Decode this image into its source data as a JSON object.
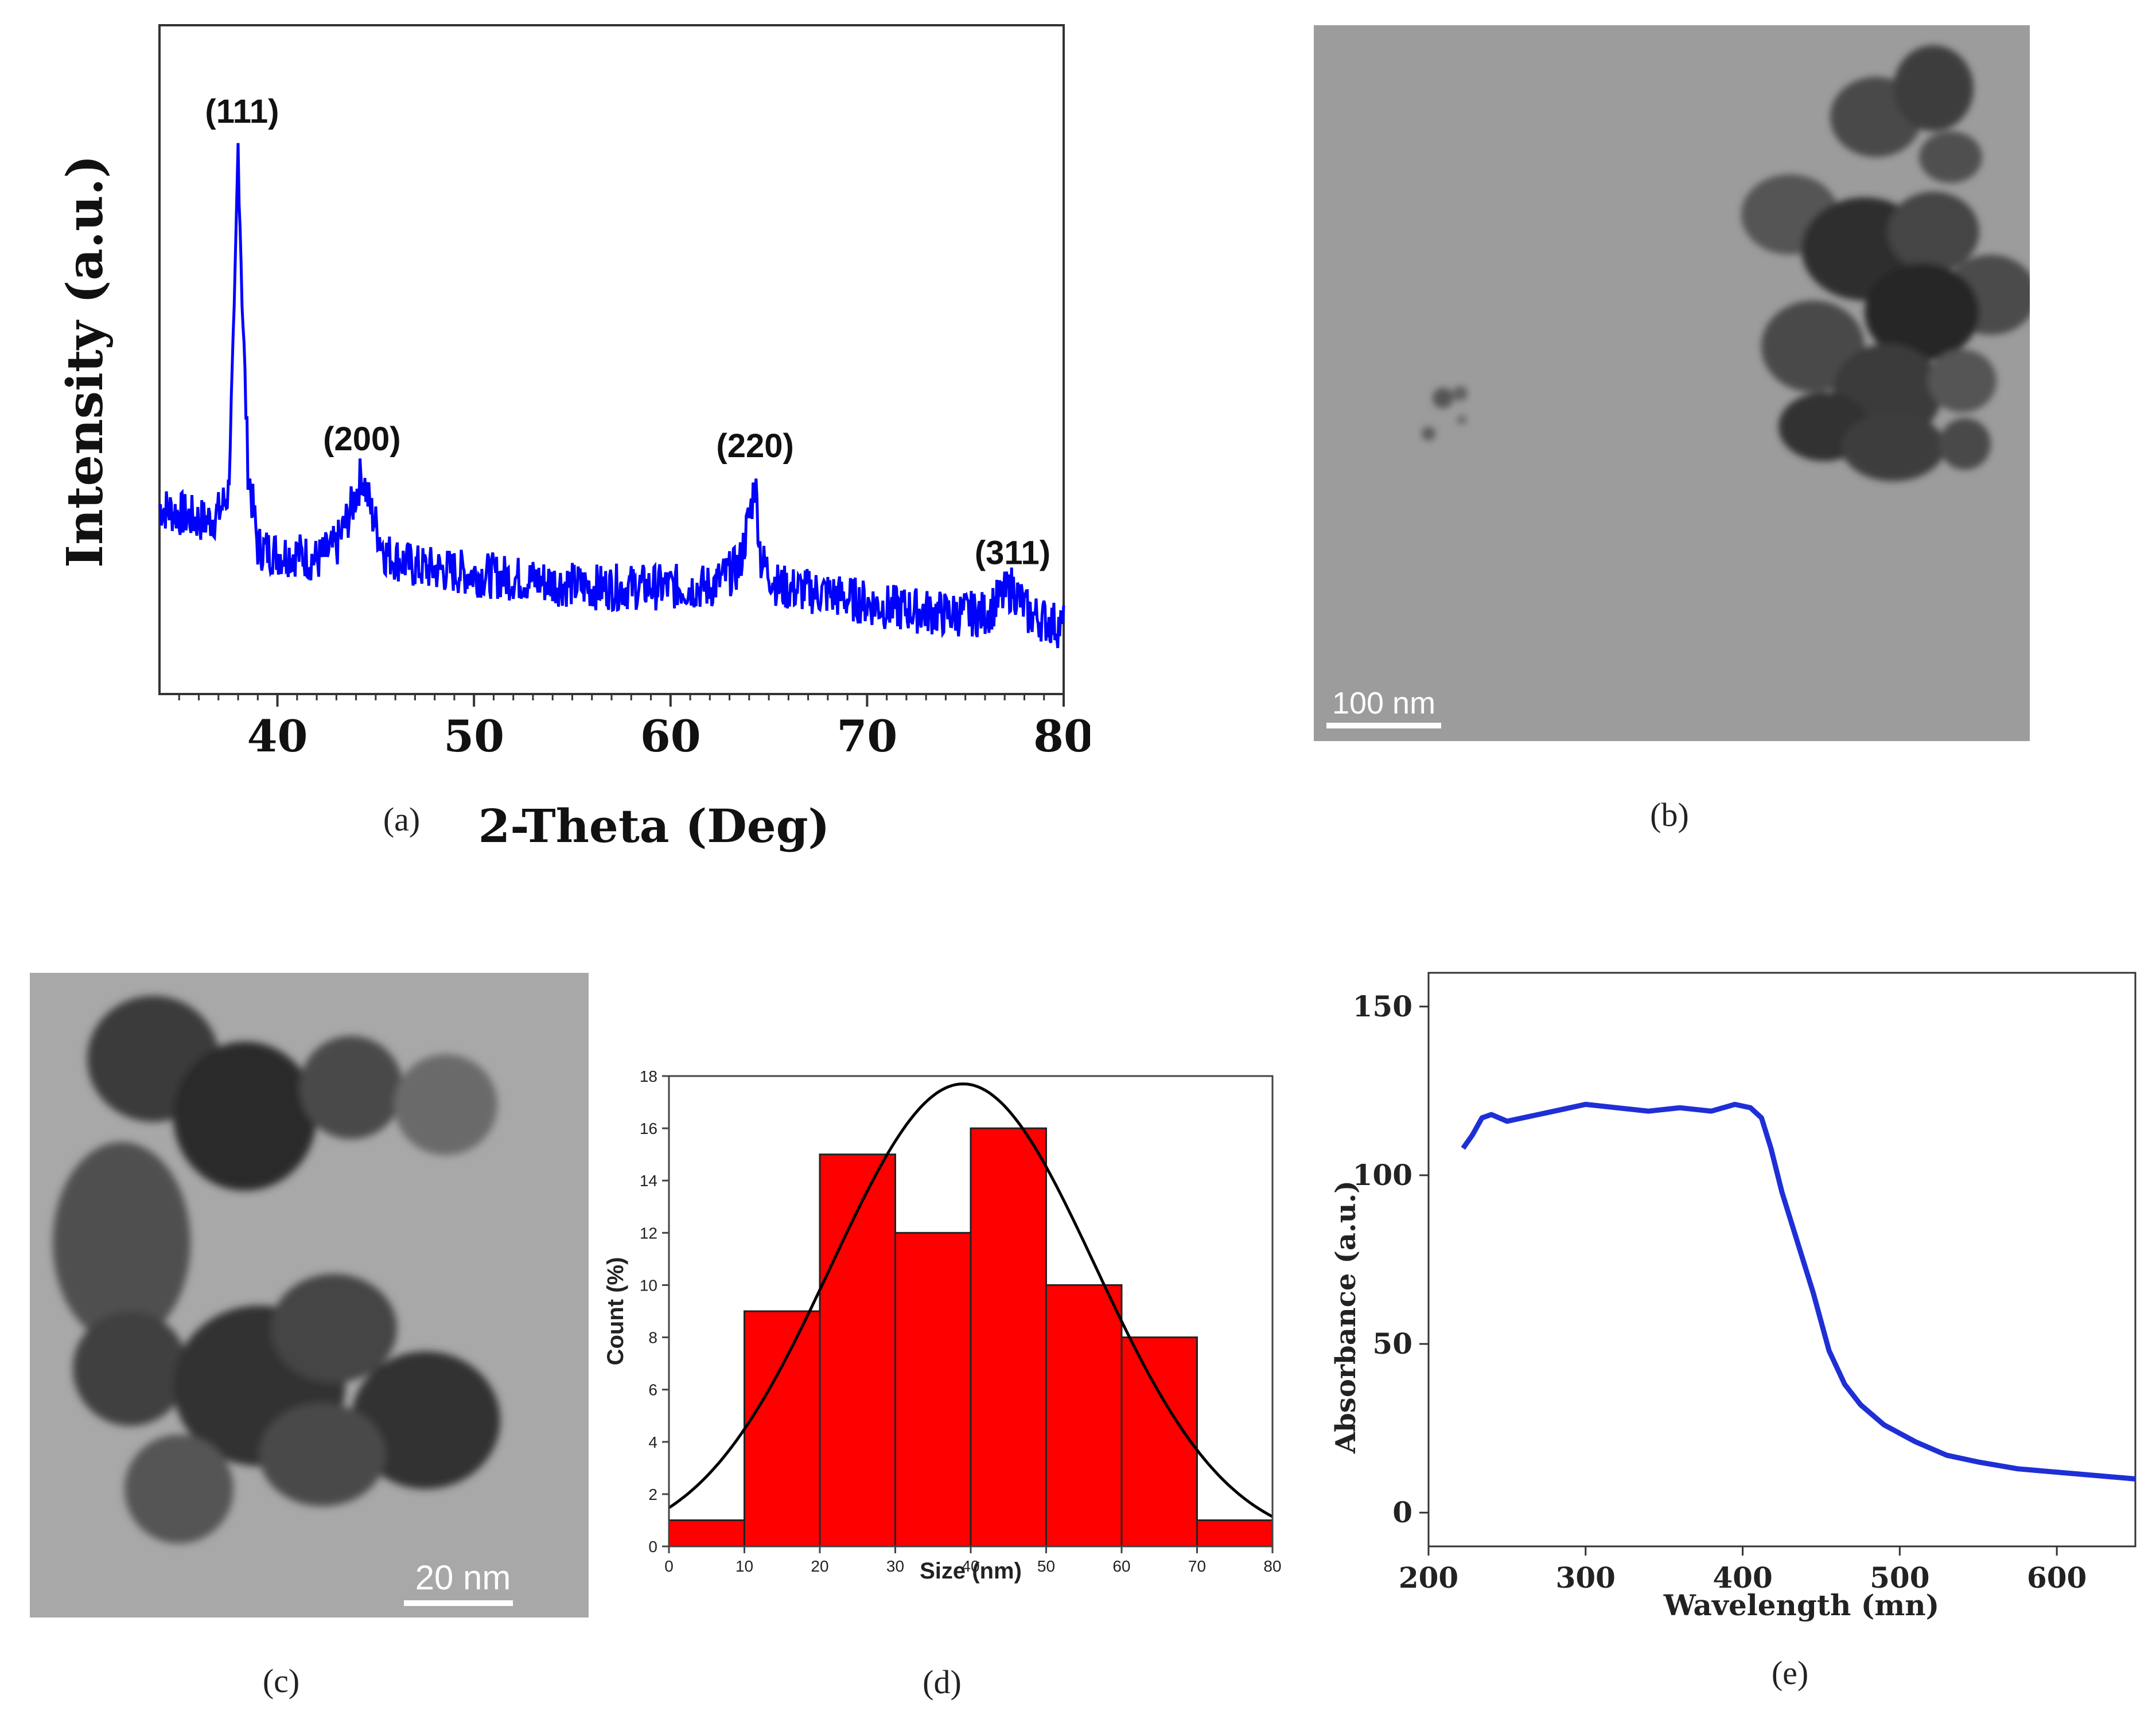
{
  "colors": {
    "xrd_line": "#0000ff",
    "uv_line": "#1f2fd6",
    "bars": "#ff0000",
    "fit": "#000000"
  },
  "captions": {
    "a": "(a)",
    "b": "(b)",
    "c": "(c)",
    "d": "(d)",
    "e": "(e)"
  },
  "micrographs": {
    "b": {
      "scale_bar": "100 nm",
      "background": "#9a9a9a"
    },
    "c": {
      "scale_bar": "20 nm",
      "background": "#a7a7a7"
    }
  },
  "chart_data": [
    {
      "id": "a",
      "type": "line",
      "xlabel": "2-Theta (Deg)",
      "ylabel": "Intensity (a.u.)",
      "xlim": [
        34,
        80
      ],
      "ylim": [
        0,
        100
      ],
      "xticks": [
        40,
        50,
        60,
        70,
        80
      ],
      "yticks_visible": false,
      "series": [
        {
          "x": [
            34,
            35,
            36,
            36.5,
            37,
            37.5,
            37.8,
            38.0,
            38.2,
            38.5,
            39,
            40,
            41,
            42,
            43,
            43.8,
            44.3,
            44.8,
            45.5,
            47,
            50,
            53,
            56,
            59,
            62,
            63.5,
            64.1,
            64.3,
            64.6,
            65.5,
            68,
            71,
            74,
            76,
            77.4,
            78.2,
            80
          ],
          "y": [
            28,
            27,
            26,
            26,
            27,
            30,
            55,
            82,
            60,
            34,
            22,
            21,
            21,
            20,
            22,
            28,
            33,
            27,
            21,
            19,
            18,
            17,
            16,
            16,
            16,
            19,
            28,
            32,
            20,
            16,
            15,
            13,
            12,
            12,
            16,
            12,
            10
          ]
        }
      ],
      "annotations": [
        {
          "text": "(111)",
          "x": 38.2,
          "y": 82
        },
        {
          "text": "(200)",
          "x": 44.3,
          "y": 33
        },
        {
          "text": "(220)",
          "x": 64.3,
          "y": 32
        },
        {
          "text": "(311)",
          "x": 77.4,
          "y": 16
        }
      ]
    },
    {
      "id": "d",
      "type": "bar",
      "xlabel": "Size (nm)",
      "ylabel": "Count (%)",
      "xlim": [
        0,
        80
      ],
      "ylim": [
        0,
        18
      ],
      "xticks": [
        0,
        10,
        20,
        30,
        40,
        50,
        60,
        70,
        80
      ],
      "yticks": [
        0,
        2,
        4,
        6,
        8,
        10,
        12,
        14,
        16,
        18
      ],
      "bins": [
        [
          0,
          10
        ],
        [
          10,
          20
        ],
        [
          20,
          30
        ],
        [
          30,
          40
        ],
        [
          40,
          50
        ],
        [
          50,
          60
        ],
        [
          60,
          70
        ],
        [
          70,
          80
        ]
      ],
      "values": [
        1,
        9,
        15,
        12,
        16,
        10,
        8,
        1
      ],
      "fit": {
        "type": "gaussian",
        "mean": 39,
        "sigma": 17.5,
        "peak": 17.7
      }
    },
    {
      "id": "e",
      "type": "line",
      "xlabel": "Wavelength (mn)",
      "ylabel": "Absorbance (a.u.)",
      "xlim": [
        200,
        650
      ],
      "ylim": [
        -10,
        160
      ],
      "xticks": [
        200,
        300,
        400,
        500,
        600
      ],
      "yticks": [
        0,
        50,
        100,
        150
      ],
      "series": [
        {
          "x": [
            222,
            228,
            234,
            240,
            250,
            260,
            280,
            300,
            320,
            340,
            360,
            380,
            395,
            405,
            412,
            418,
            425,
            435,
            445,
            455,
            465,
            475,
            490,
            510,
            530,
            550,
            575,
            600,
            625,
            650
          ],
          "y": [
            108,
            112,
            117,
            118,
            116,
            117,
            119,
            121,
            120,
            119,
            120,
            119,
            121,
            120,
            117,
            108,
            95,
            80,
            65,
            48,
            38,
            32,
            26,
            21,
            17,
            15,
            13,
            12,
            11,
            10
          ]
        }
      ]
    }
  ]
}
